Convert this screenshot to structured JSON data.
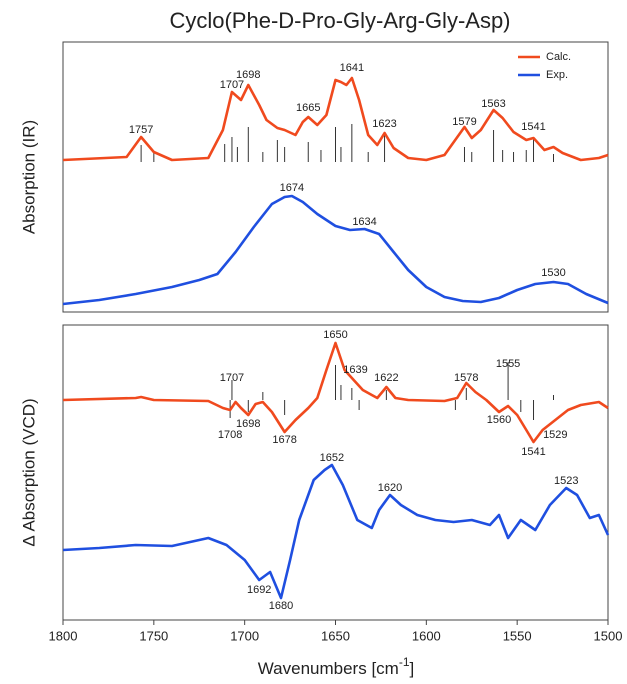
{
  "chart_data": {
    "type": "line",
    "title": "Cyclo(Phe-D-Pro-Gly-Arg-Gly-Asp)",
    "xlabel": {
      "text": "Wavenumbers [cm",
      "sup": "-1",
      "end": "]"
    },
    "xlim": [
      1800,
      1500
    ],
    "xticks": [
      1800,
      1750,
      1700,
      1650,
      1600,
      1550,
      1500
    ],
    "legend": "upper right",
    "panels": [
      {
        "ylabel": "Absorption (IR)",
        "ylim": [
          0,
          270
        ],
        "series": [
          {
            "name": "Calc.",
            "color": "#f04a1e",
            "x": [
              1800,
              1765,
              1757,
              1750,
              1740,
              1720,
              1712,
              1707,
              1702,
              1698,
              1692,
              1688,
              1682,
              1678,
              1672,
              1668,
              1665,
              1660,
              1655,
              1650,
              1647,
              1644,
              1641,
              1637,
              1632,
              1627,
              1623,
              1618,
              1610,
              1600,
              1590,
              1579,
              1575,
              1570,
              1563,
              1558,
              1552,
              1545,
              1541,
              1535,
              1530,
              1525,
              1515,
              1505,
              1500
            ],
            "values": [
              152,
              155,
              175,
              160,
              152,
              154,
              182,
              220,
              212,
              227,
              207,
              192,
              184,
              182,
              177,
              190,
              195,
              187,
              197,
              232,
              230,
              227,
              234,
              212,
              177,
              167,
              179,
              164,
              154,
              152,
              157,
              185,
              174,
              182,
              202,
              194,
              180,
              172,
              174,
              162,
              165,
              159,
              152,
              154,
              157
            ]
          },
          {
            "name": "Exp.",
            "color": "#1f4fe0",
            "x": [
              1800,
              1780,
              1760,
              1740,
              1725,
              1715,
              1705,
              1695,
              1685,
              1678,
              1674,
              1668,
              1660,
              1650,
              1642,
              1634,
              1626,
              1618,
              1610,
              1600,
              1590,
              1580,
              1570,
              1560,
              1550,
              1540,
              1530,
              1522,
              1512,
              1500
            ],
            "values": [
              8,
              12,
              18,
              25,
              32,
              38,
              60,
              85,
              108,
              115,
              116,
              110,
              98,
              86,
              82,
              83,
              78,
              60,
              42,
              25,
              15,
              11,
              10,
              14,
              22,
              28,
              30,
              28,
              18,
              9
            ]
          }
        ],
        "sticks": {
          "color": "#333333",
          "baseline": 150,
          "x": [
            1757,
            1750,
            1711,
            1707,
            1704,
            1698,
            1690,
            1682,
            1678,
            1665,
            1658,
            1650,
            1647,
            1641,
            1632,
            1623,
            1579,
            1575,
            1563,
            1558,
            1552,
            1545,
            1541,
            1530
          ],
          "values": [
            17,
            10,
            18,
            25,
            15,
            35,
            10,
            22,
            15,
            20,
            12,
            35,
            15,
            38,
            10,
            28,
            15,
            10,
            32,
            12,
            10,
            12,
            25,
            8
          ]
        },
        "labels": [
          {
            "x": 1757,
            "y": 182
          },
          {
            "x": 1707,
            "y": 227
          },
          {
            "x": 1698,
            "y": 237
          },
          {
            "x": 1665,
            "y": 204
          },
          {
            "x": 1641,
            "y": 244
          },
          {
            "x": 1623,
            "y": 188
          },
          {
            "x": 1579,
            "y": 190
          },
          {
            "x": 1563,
            "y": 208
          },
          {
            "x": 1541,
            "y": 185
          },
          {
            "x": 1674,
            "y": 124
          },
          {
            "x": 1634,
            "y": 90
          },
          {
            "x": 1530,
            "y": 39
          }
        ]
      },
      {
        "ylabel": "Δ Absorption (VCD)",
        "ylim": [
          0,
          295
        ],
        "series": [
          {
            "color": "#f04a1e",
            "x": [
              1800,
              1760,
              1757,
              1750,
              1720,
              1712,
              1708,
              1705,
              1702,
              1698,
              1694,
              1690,
              1685,
              1678,
              1672,
              1665,
              1660,
              1655,
              1650,
              1645,
              1639,
              1635,
              1630,
              1627,
              1622,
              1617,
              1610,
              1590,
              1583,
              1578,
              1573,
              1567,
              1560,
              1555,
              1550,
              1545,
              1541,
              1536,
              1529,
              1522,
              1515,
              1505,
              1500
            ],
            "values": [
              220,
              222,
              223,
              220,
              219,
              212,
              210,
              218,
              212,
              205,
              216,
              218,
              208,
              188,
              200,
              212,
              222,
              250,
              277,
              250,
              238,
              230,
              225,
              222,
              233,
              222,
              220,
              219,
              222,
              237,
              228,
              220,
              208,
              214,
              205,
              190,
              178,
              190,
              200,
              210,
              215,
              218,
              212
            ]
          },
          {
            "color": "#1f4fe0",
            "x": [
              1800,
              1780,
              1760,
              1740,
              1720,
              1710,
              1700,
              1692,
              1686,
              1680,
              1675,
              1670,
              1662,
              1656,
              1652,
              1646,
              1638,
              1630,
              1626,
              1620,
              1614,
              1605,
              1595,
              1585,
              1575,
              1565,
              1560,
              1555,
              1548,
              1540,
              1532,
              1523,
              1517,
              1510,
              1505,
              1500
            ],
            "values": [
              70,
              72,
              75,
              74,
              82,
              75,
              60,
              40,
              48,
              22,
              60,
              100,
              140,
              150,
              155,
              135,
              100,
              92,
              110,
              125,
              115,
              105,
              100,
              98,
              100,
              95,
              105,
              82,
              100,
              90,
              115,
              132,
              125,
              102,
              105,
              85
            ]
          }
        ],
        "sticks": {
          "color": "#333333",
          "baseline": 220,
          "x": [
            1707,
            1708,
            1698,
            1690,
            1678,
            1650,
            1647,
            1641,
            1637,
            1622,
            1578,
            1584,
            1555,
            1548,
            1541,
            1530
          ],
          "values": [
            20,
            -18,
            -12,
            8,
            -15,
            35,
            15,
            12,
            -10,
            10,
            12,
            -10,
            38,
            -12,
            -20,
            5
          ]
        },
        "labels": [
          {
            "x": 1707,
            "y": 242
          },
          {
            "x": 1708,
            "y": 185
          },
          {
            "x": 1698,
            "y": 196
          },
          {
            "x": 1678,
            "y": 180
          },
          {
            "x": 1650,
            "y": 285
          },
          {
            "x": 1639,
            "y": 250
          },
          {
            "x": 1622,
            "y": 242
          },
          {
            "x": 1578,
            "y": 242
          },
          {
            "x": 1555,
            "y": 256
          },
          {
            "x": 1560,
            "y": 200
          },
          {
            "x": 1541,
            "y": 168
          },
          {
            "x": 1529,
            "y": 185
          },
          {
            "x": 1652,
            "y": 162
          },
          {
            "x": 1620,
            "y": 132
          },
          {
            "x": 1523,
            "y": 139
          },
          {
            "x": 1692,
            "y": 30
          },
          {
            "x": 1680,
            "y": 14
          }
        ]
      }
    ]
  }
}
